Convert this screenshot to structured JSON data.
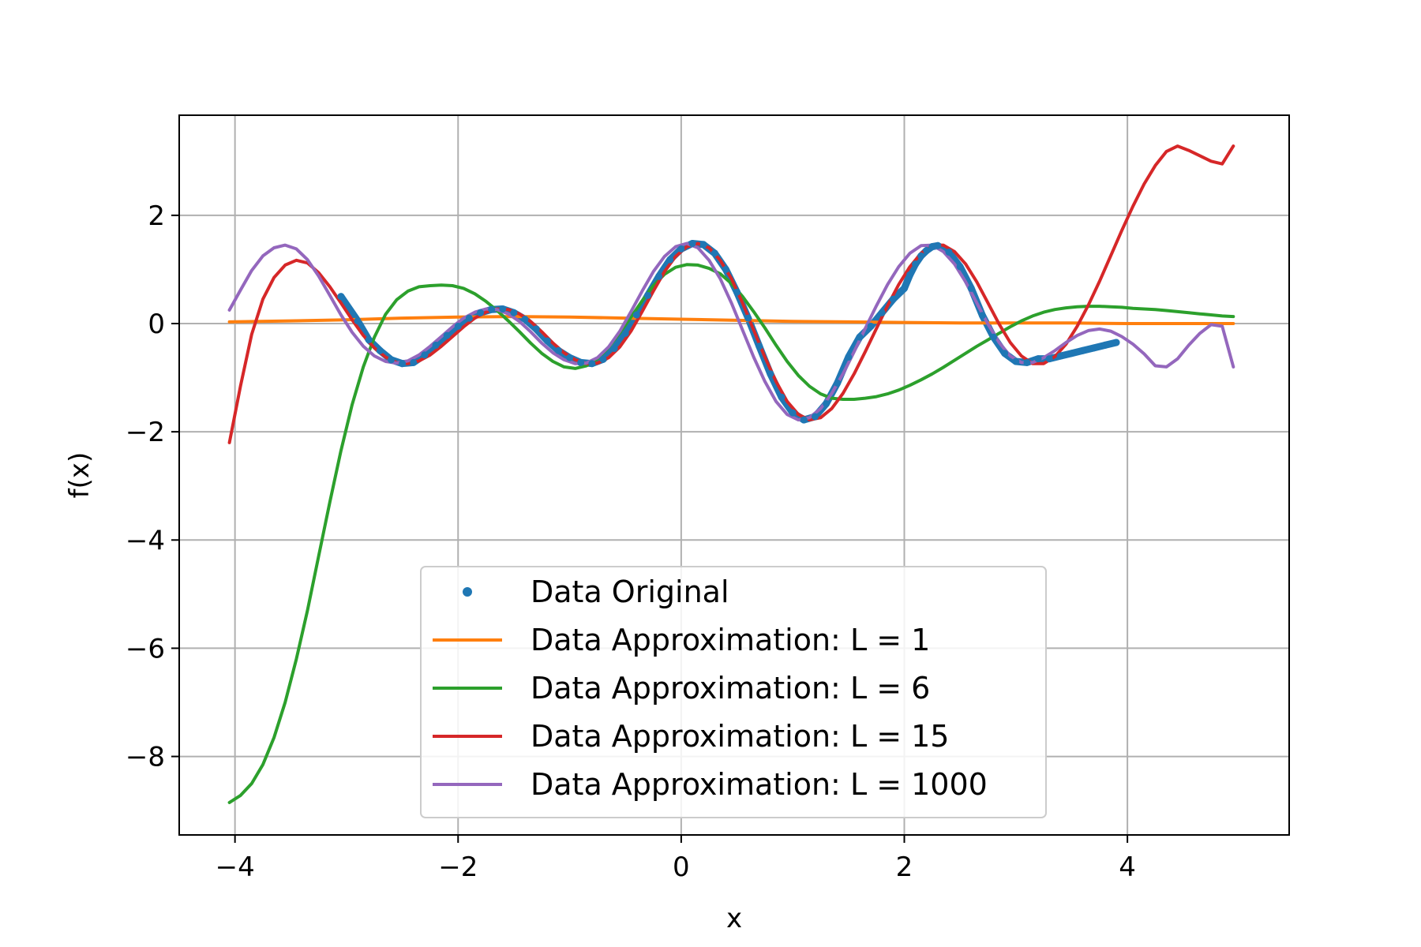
{
  "chart_data": {
    "type": "line",
    "xlabel": "x",
    "ylabel": "f(x)",
    "xlim": [
      -4.5,
      5.45
    ],
    "ylim": [
      -9.45,
      3.85
    ],
    "xticks": [
      -4,
      -2,
      0,
      2,
      4
    ],
    "xtick_labels": [
      "−4",
      "−2",
      "0",
      "2",
      "4"
    ],
    "yticks": [
      -8,
      -6,
      -4,
      -2,
      0,
      2
    ],
    "ytick_labels": [
      "−8",
      "−6",
      "−4",
      "−2",
      "0",
      "2"
    ],
    "grid": true,
    "legend_position": "lower-center",
    "series": [
      {
        "name": "Data Original",
        "kind": "scatter",
        "color": "#1f77b4",
        "x": [
          -3.05,
          -2.9,
          -2.8,
          -2.7,
          -2.6,
          -2.5,
          -2.4,
          -2.3,
          -2.2,
          -2.1,
          -2.0,
          -1.9,
          -1.8,
          -1.7,
          -1.6,
          -1.5,
          -1.4,
          -1.3,
          -1.2,
          -1.1,
          -1.0,
          -0.9,
          -0.8,
          -0.7,
          -0.6,
          -0.5,
          -0.4,
          -0.3,
          -0.2,
          -0.1,
          0.0,
          0.1,
          0.2,
          0.3,
          0.4,
          0.5,
          0.6,
          0.7,
          0.8,
          0.9,
          1.0,
          1.1,
          1.2,
          1.3,
          1.4,
          1.5,
          1.6,
          1.7,
          1.8,
          1.9,
          2.0,
          2.05,
          2.1,
          2.15,
          2.2,
          2.25,
          2.3,
          2.4,
          2.5,
          2.6,
          2.7,
          2.8,
          2.9,
          3.0,
          3.1,
          3.2,
          3.3,
          3.4,
          3.5,
          3.6,
          3.7,
          3.8,
          3.9
        ],
        "y": [
          0.5,
          0.05,
          -0.3,
          -0.5,
          -0.67,
          -0.74,
          -0.72,
          -0.58,
          -0.4,
          -0.22,
          -0.05,
          0.1,
          0.2,
          0.26,
          0.27,
          0.2,
          0.08,
          -0.1,
          -0.32,
          -0.5,
          -0.63,
          -0.72,
          -0.74,
          -0.66,
          -0.46,
          -0.18,
          0.16,
          0.52,
          0.87,
          1.18,
          1.38,
          1.48,
          1.46,
          1.3,
          1.0,
          0.58,
          0.1,
          -0.42,
          -0.93,
          -1.36,
          -1.65,
          -1.78,
          -1.72,
          -1.48,
          -1.1,
          -0.62,
          -0.25,
          -0.05,
          0.2,
          0.45,
          0.65,
          0.9,
          1.1,
          1.25,
          1.35,
          1.42,
          1.44,
          1.32,
          1.05,
          0.65,
          0.15,
          -0.25,
          -0.55,
          -0.7,
          -0.72,
          -0.65,
          -0.65,
          -0.6,
          -0.55,
          -0.5,
          -0.45,
          -0.4,
          -0.35
        ]
      },
      {
        "name": "Data Approximation: L = 1",
        "kind": "line",
        "color": "#ff7f0e",
        "x": [
          -4.05,
          -3.5,
          -3.0,
          -2.5,
          -2.0,
          -1.5,
          -1.0,
          -0.5,
          0.0,
          0.5,
          1.0,
          1.5,
          2.0,
          2.5,
          3.0,
          3.5,
          4.0,
          4.5,
          4.95
        ],
        "y": [
          0.03,
          0.05,
          0.07,
          0.1,
          0.12,
          0.13,
          0.12,
          0.1,
          0.08,
          0.06,
          0.04,
          0.03,
          0.02,
          0.01,
          0.01,
          0.01,
          0.0,
          0.0,
          0.0
        ]
      },
      {
        "name": "Data Approximation: L = 6",
        "kind": "line",
        "color": "#2ca02c",
        "x": [
          -4.05,
          -3.95,
          -3.85,
          -3.75,
          -3.65,
          -3.55,
          -3.45,
          -3.35,
          -3.25,
          -3.15,
          -3.05,
          -2.95,
          -2.85,
          -2.75,
          -2.65,
          -2.55,
          -2.45,
          -2.35,
          -2.25,
          -2.15,
          -2.05,
          -1.95,
          -1.85,
          -1.75,
          -1.65,
          -1.55,
          -1.45,
          -1.35,
          -1.25,
          -1.15,
          -1.05,
          -0.95,
          -0.85,
          -0.75,
          -0.65,
          -0.55,
          -0.45,
          -0.35,
          -0.25,
          -0.15,
          -0.05,
          0.05,
          0.15,
          0.25,
          0.35,
          0.45,
          0.55,
          0.65,
          0.75,
          0.85,
          0.95,
          1.05,
          1.15,
          1.25,
          1.35,
          1.45,
          1.55,
          1.65,
          1.75,
          1.85,
          1.95,
          2.05,
          2.15,
          2.25,
          2.35,
          2.45,
          2.55,
          2.65,
          2.75,
          2.85,
          2.95,
          3.05,
          3.15,
          3.25,
          3.35,
          3.45,
          3.55,
          3.65,
          3.75,
          3.85,
          3.95,
          4.05,
          4.15,
          4.25,
          4.35,
          4.45,
          4.55,
          4.65,
          4.75,
          4.85,
          4.95
        ],
        "y": [
          -8.85,
          -8.72,
          -8.5,
          -8.15,
          -7.65,
          -7.0,
          -6.2,
          -5.3,
          -4.3,
          -3.3,
          -2.35,
          -1.5,
          -0.8,
          -0.25,
          0.17,
          0.44,
          0.6,
          0.68,
          0.7,
          0.71,
          0.7,
          0.65,
          0.55,
          0.41,
          0.24,
          0.05,
          -0.15,
          -0.36,
          -0.55,
          -0.7,
          -0.8,
          -0.83,
          -0.78,
          -0.65,
          -0.44,
          -0.17,
          0.12,
          0.42,
          0.7,
          0.91,
          1.04,
          1.09,
          1.08,
          1.02,
          0.92,
          0.74,
          0.5,
          0.22,
          -0.08,
          -0.4,
          -0.7,
          -0.96,
          -1.16,
          -1.3,
          -1.38,
          -1.4,
          -1.4,
          -1.38,
          -1.35,
          -1.3,
          -1.23,
          -1.14,
          -1.04,
          -0.93,
          -0.81,
          -0.68,
          -0.55,
          -0.42,
          -0.3,
          -0.18,
          -0.06,
          0.05,
          0.14,
          0.21,
          0.26,
          0.29,
          0.31,
          0.32,
          0.32,
          0.31,
          0.3,
          0.28,
          0.27,
          0.26,
          0.24,
          0.22,
          0.2,
          0.18,
          0.16,
          0.14,
          0.13
        ]
      },
      {
        "name": "Data Approximation: L = 15",
        "kind": "line",
        "color": "#d62728",
        "x": [
          -4.05,
          -3.95,
          -3.85,
          -3.75,
          -3.65,
          -3.55,
          -3.45,
          -3.35,
          -3.25,
          -3.15,
          -3.05,
          -2.95,
          -2.85,
          -2.75,
          -2.65,
          -2.55,
          -2.45,
          -2.35,
          -2.25,
          -2.15,
          -2.05,
          -1.95,
          -1.85,
          -1.75,
          -1.65,
          -1.55,
          -1.45,
          -1.35,
          -1.25,
          -1.15,
          -1.05,
          -0.95,
          -0.85,
          -0.75,
          -0.65,
          -0.55,
          -0.45,
          -0.35,
          -0.25,
          -0.15,
          -0.05,
          0.05,
          0.15,
          0.25,
          0.35,
          0.45,
          0.55,
          0.65,
          0.75,
          0.85,
          0.95,
          1.05,
          1.15,
          1.25,
          1.35,
          1.45,
          1.55,
          1.65,
          1.75,
          1.85,
          1.95,
          2.05,
          2.15,
          2.25,
          2.35,
          2.45,
          2.55,
          2.65,
          2.75,
          2.85,
          2.95,
          3.05,
          3.15,
          3.25,
          3.35,
          3.45,
          3.55,
          3.65,
          3.75,
          3.85,
          3.95,
          4.05,
          4.15,
          4.25,
          4.35,
          4.45,
          4.55,
          4.65,
          4.75,
          4.85,
          4.95
        ],
        "y": [
          -2.2,
          -1.15,
          -0.2,
          0.45,
          0.85,
          1.08,
          1.17,
          1.12,
          0.94,
          0.68,
          0.38,
          0.07,
          -0.22,
          -0.45,
          -0.62,
          -0.72,
          -0.74,
          -0.69,
          -0.58,
          -0.42,
          -0.24,
          -0.06,
          0.1,
          0.21,
          0.27,
          0.26,
          0.18,
          0.04,
          -0.15,
          -0.36,
          -0.54,
          -0.67,
          -0.74,
          -0.73,
          -0.63,
          -0.43,
          -0.14,
          0.22,
          0.6,
          0.96,
          1.24,
          1.42,
          1.48,
          1.4,
          1.17,
          0.83,
          0.38,
          -0.12,
          -0.62,
          -1.07,
          -1.44,
          -1.68,
          -1.78,
          -1.74,
          -1.57,
          -1.29,
          -0.93,
          -0.52,
          -0.09,
          0.33,
          0.72,
          1.05,
          1.3,
          1.44,
          1.45,
          1.33,
          1.1,
          0.77,
          0.38,
          -0.01,
          -0.35,
          -0.6,
          -0.74,
          -0.74,
          -0.61,
          -0.38,
          -0.05,
          0.34,
          0.78,
          1.25,
          1.72,
          2.17,
          2.58,
          2.92,
          3.18,
          3.28,
          3.2,
          3.1,
          3.0,
          2.95,
          3.28
        ],
        "note_points": []
      },
      {
        "name": "Data Approximation: L = 1000",
        "kind": "line",
        "color": "#9467bd",
        "x": [
          -4.05,
          -3.95,
          -3.85,
          -3.75,
          -3.65,
          -3.55,
          -3.45,
          -3.35,
          -3.25,
          -3.15,
          -3.05,
          -2.95,
          -2.85,
          -2.75,
          -2.65,
          -2.55,
          -2.45,
          -2.35,
          -2.25,
          -2.15,
          -2.05,
          -1.95,
          -1.85,
          -1.75,
          -1.65,
          -1.55,
          -1.45,
          -1.35,
          -1.25,
          -1.15,
          -1.05,
          -0.95,
          -0.85,
          -0.75,
          -0.65,
          -0.55,
          -0.45,
          -0.35,
          -0.25,
          -0.15,
          -0.05,
          0.05,
          0.15,
          0.25,
          0.35,
          0.45,
          0.55,
          0.65,
          0.75,
          0.85,
          0.95,
          1.05,
          1.15,
          1.25,
          1.35,
          1.45,
          1.55,
          1.65,
          1.75,
          1.85,
          1.95,
          2.05,
          2.15,
          2.25,
          2.35,
          2.45,
          2.55,
          2.65,
          2.75,
          2.85,
          2.95,
          3.05,
          3.15,
          3.25,
          3.35,
          3.45,
          3.55,
          3.65,
          3.75,
          3.85,
          3.95,
          4.05,
          4.15,
          4.25,
          4.35,
          4.45,
          4.55,
          4.65,
          4.75,
          4.85,
          4.95
        ],
        "y": [
          0.25,
          0.62,
          0.98,
          1.25,
          1.4,
          1.45,
          1.38,
          1.18,
          0.88,
          0.52,
          0.16,
          -0.16,
          -0.42,
          -0.6,
          -0.7,
          -0.73,
          -0.69,
          -0.58,
          -0.42,
          -0.24,
          -0.06,
          0.1,
          0.21,
          0.27,
          0.26,
          0.18,
          0.04,
          -0.15,
          -0.36,
          -0.54,
          -0.67,
          -0.74,
          -0.73,
          -0.63,
          -0.43,
          -0.14,
          0.22,
          0.6,
          0.96,
          1.24,
          1.42,
          1.48,
          1.4,
          1.17,
          0.83,
          0.38,
          -0.12,
          -0.62,
          -1.07,
          -1.44,
          -1.68,
          -1.78,
          -1.74,
          -1.57,
          -1.29,
          -0.93,
          -0.52,
          -0.09,
          0.33,
          0.72,
          1.05,
          1.3,
          1.44,
          1.45,
          1.33,
          1.1,
          0.77,
          0.38,
          -0.01,
          -0.35,
          -0.6,
          -0.72,
          -0.72,
          -0.63,
          -0.5,
          -0.35,
          -0.22,
          -0.13,
          -0.1,
          -0.14,
          -0.24,
          -0.38,
          -0.56,
          -0.78,
          -0.8,
          -0.65,
          -0.4,
          -0.18,
          -0.02,
          -0.05,
          -0.8
        ]
      }
    ]
  }
}
